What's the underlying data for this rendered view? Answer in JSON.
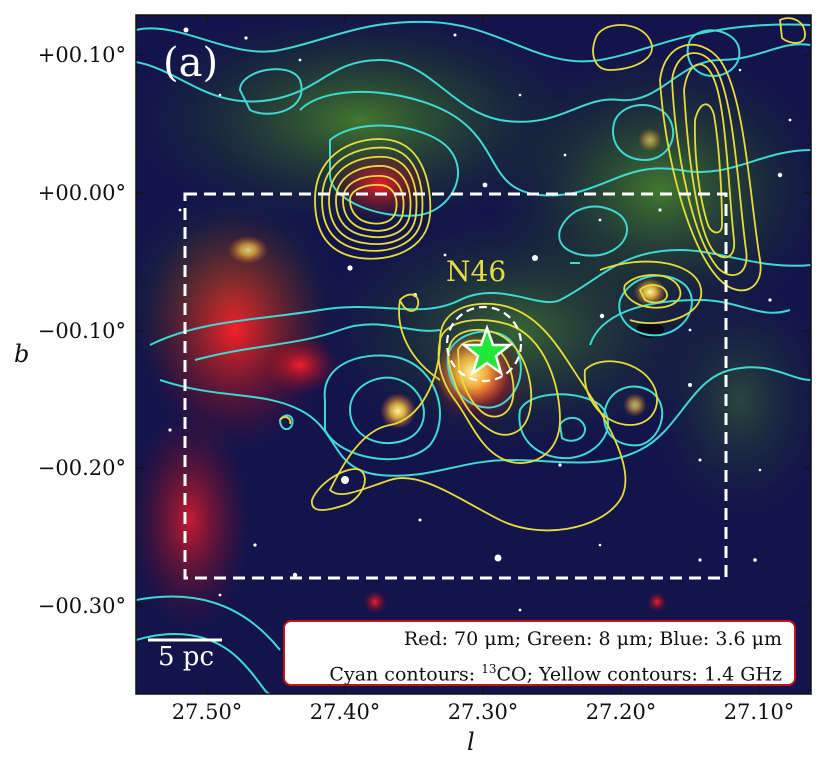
{
  "panel": {
    "label": "(a)"
  },
  "axes": {
    "xlabel": "l",
    "ylabel": "b",
    "xticks": [
      "27.50°",
      "27.40°",
      "27.30°",
      "27.20°",
      "27.10°"
    ],
    "yticks": [
      "+00.10°",
      "+00.00°",
      "−00.10°",
      "−00.20°",
      "−00.30°"
    ]
  },
  "annotations": {
    "region": "N46",
    "scalebar": "5 pc"
  },
  "legend": {
    "line1": "Red: 70 μm; Green: 8 μm; Blue: 3.6 μm",
    "line2_prefix": "Cyan contours: ",
    "line2_sup": "13",
    "line2_suffix": "CO; Yellow contours: 1.4 GHz"
  },
  "colors": {
    "cyan_contours": "#3fd8d2",
    "yellow_contours": "#e8dc3a",
    "marker_star": "#22e83a",
    "legend_border": "#c0141c",
    "box": "#ffffff"
  },
  "icons": {
    "marker": "star-icon",
    "dashed-circle": "dashed-circle-icon"
  }
}
